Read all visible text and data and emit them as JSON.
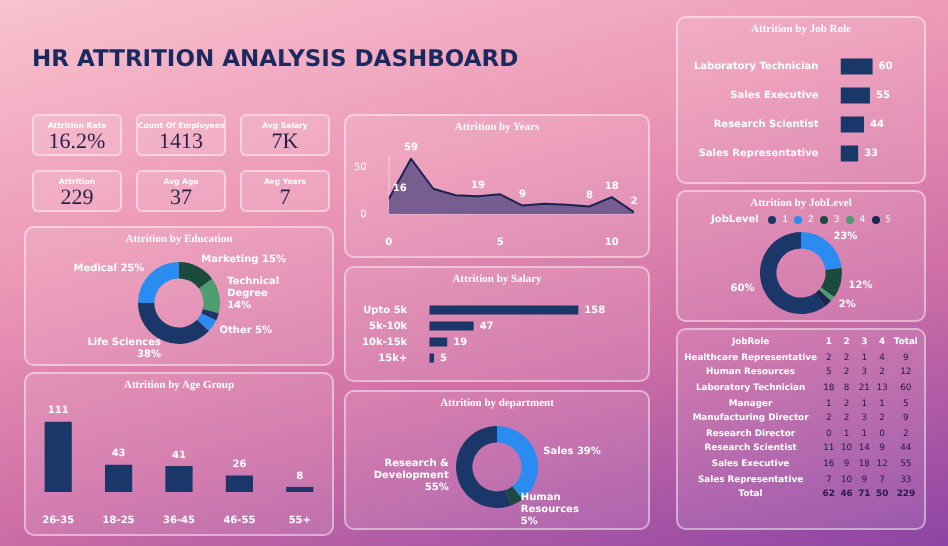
{
  "chart_data": [
    {
      "type": "other",
      "title": "HR ATTRITION ANALYSIS DASHBOARD",
      "annotations": [
        "Attrition Rate",
        "16.2%",
        "Count Of Employees",
        "1413",
        "Avg Salary",
        "7K",
        "Attrition",
        "229",
        "Avg Age",
        "37",
        "Avg Years",
        "7"
      ]
    },
    {
      "type": "area",
      "title": "Attrition by Years",
      "x": [
        0,
        1,
        2,
        3,
        4,
        5,
        6,
        7,
        8,
        9,
        10,
        11
      ],
      "values": [
        16,
        59,
        27,
        20,
        19,
        21,
        9,
        11,
        10,
        8,
        18,
        2
      ],
      "value_labels": [
        "16",
        "59",
        null,
        null,
        "19",
        null,
        "9",
        null,
        null,
        "8",
        "18",
        "2"
      ],
      "color": "#5a4d86",
      "xlim": [
        0,
        11
      ],
      "xticks": [
        0,
        5,
        10
      ],
      "ylim": [
        0,
        62
      ],
      "yticks": [
        0,
        50
      ]
    },
    {
      "type": "bar",
      "title": "Attrition by Job Role",
      "orientation": "horizontal",
      "categories": [
        "Laboratory Technician",
        "Sales Executive",
        "Research Scientist",
        "Sales Representative"
      ],
      "values": [
        60,
        55,
        44,
        33
      ],
      "color": "#1b3668",
      "data_labels": true,
      "tick_labels": "y"
    },
    {
      "type": "donut",
      "title": "Attrition by Education",
      "categories": [
        "Marketing",
        "Technical Degree",
        null,
        "Other",
        "Life Sciences",
        "Medical"
      ],
      "values": [
        15,
        14,
        3,
        5,
        38,
        25
      ],
      "value_labels": [
        "15%",
        "14%",
        null,
        "5%",
        "38%",
        "25%"
      ],
      "colors": [
        "#1c4a3c",
        "#4e9e72",
        "#1b3668",
        "#2a8cf0",
        "#1b3668",
        "#2a8cf0"
      ]
    },
    {
      "type": "bar",
      "title": "Attrition by Salary",
      "orientation": "horizontal",
      "categories": [
        "Upto 5k",
        "5k-10k",
        "10k-15k",
        "15k+"
      ],
      "values": [
        158,
        47,
        19,
        5
      ],
      "color": "#1b3668",
      "data_labels": true,
      "tick_labels": "y"
    },
    {
      "type": "donut",
      "title": "Attrition by JobLevel",
      "legend": "top",
      "legend_title": "JobLevel",
      "categories": [
        "1",
        "2",
        "3",
        "4",
        "5"
      ],
      "values": [
        60,
        23,
        12,
        2,
        3
      ],
      "value_labels": [
        "60%",
        "23%",
        "12%",
        "2%",
        null
      ],
      "colors": [
        "#1b3668",
        "#2a8cf0",
        "#1c4a3c",
        "#4e9e72",
        "#16284f"
      ]
    },
    {
      "type": "bar",
      "title": "Attrition by Age Group",
      "categories": [
        "26-35",
        "18-25",
        "36-45",
        "46-55",
        "55+"
      ],
      "values": [
        111,
        43,
        41,
        26,
        8
      ],
      "color": "#1b3668",
      "data_labels": true,
      "tick_labels": "x"
    },
    {
      "type": "donut",
      "title": "Attrition by department",
      "categories": [
        "Sales",
        "Human Resources",
        "Research & Development"
      ],
      "values": [
        39,
        5,
        55
      ],
      "value_labels": [
        "39%",
        "5%",
        "55%"
      ],
      "colors": [
        "#2a8cf0",
        "#1c4a3c",
        "#1b3668"
      ]
    },
    {
      "type": "heatmap",
      "ylabel": "JobRole",
      "categories": [
        "1",
        "2",
        "3",
        "4",
        "Total"
      ],
      "y_categories": [
        "Healthcare Representative",
        "Human Resources",
        "Laboratory Technician",
        "Manager",
        "Manufacturing Director",
        "Research Director",
        "Research Scientist",
        "Sales Executive",
        "Sales Representative",
        "Total"
      ],
      "cells": [
        [
          2,
          2,
          1,
          4,
          9
        ],
        [
          5,
          2,
          3,
          2,
          12
        ],
        [
          18,
          8,
          21,
          13,
          60
        ],
        [
          1,
          2,
          1,
          1,
          5
        ],
        [
          2,
          2,
          3,
          2,
          9
        ],
        [
          0,
          1,
          1,
          0,
          2
        ],
        [
          11,
          10,
          14,
          9,
          44
        ],
        [
          16,
          9,
          18,
          12,
          55
        ],
        [
          7,
          10,
          9,
          7,
          33
        ],
        [
          62,
          46,
          71,
          50,
          229
        ]
      ],
      "data_labels": true
    }
  ]
}
